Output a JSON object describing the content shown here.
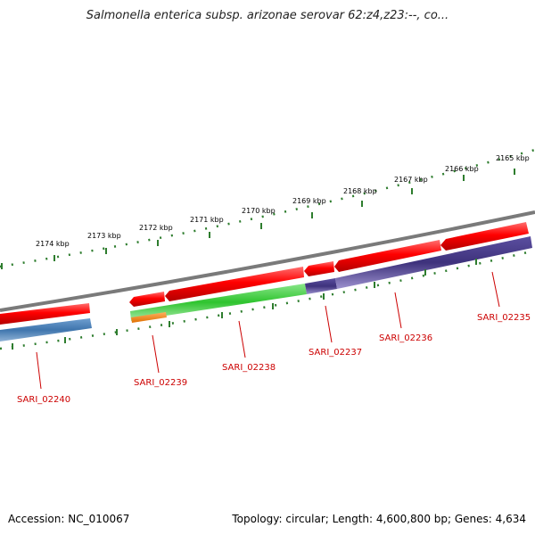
{
  "title": "Salmonella enterica subsp. arizonae serovar 62:z4,z23:--, co...",
  "footer": {
    "accession": "Accession: NC_010067",
    "topology": "Topology: circular; Length: 4,600,800 bp; Genes: 4,634"
  },
  "scale_ticks": [
    "2174 kbp",
    "2173 kbp",
    "2172 kbp",
    "2171 kbp",
    "2170 kbp",
    "2169 kbp",
    "2168 kbp",
    "2167 kbp",
    "2166 kbp",
    "2165 kbp"
  ],
  "genes": [
    "SARI_02240",
    "SARI_02239",
    "SARI_02238",
    "SARI_02237",
    "SARI_02236",
    "SARI_02235"
  ],
  "colors": {
    "backbone": "#808080",
    "cds": "#ff0000",
    "blue_feature": "#4a7fb5",
    "green_feature": "#33cc33",
    "purple_feature": "#4b3f8c",
    "orange_feature": "#ff8c1a",
    "ticks": "#2e7d2e",
    "label": "#cc0000"
  }
}
